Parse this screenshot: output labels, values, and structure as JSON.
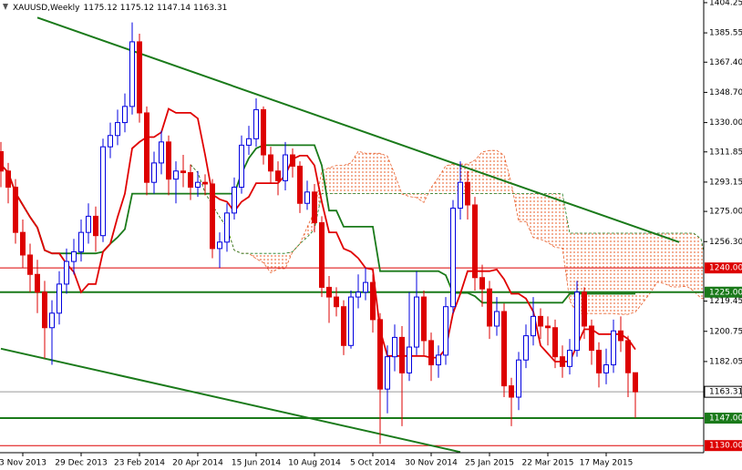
{
  "chart_data": {
    "type": "candlestick",
    "title": "XAUUSD,Weekly",
    "categories": [
      null,
      null,
      null,
      "3 Nov 2013",
      null,
      null,
      null,
      null,
      null,
      null,
      null,
      "29 Dec 2013",
      null,
      null,
      null,
      null,
      null,
      null,
      null,
      "23 Feb 2014",
      null,
      null,
      null,
      null,
      null,
      null,
      null,
      "20 Apr 2014",
      null,
      null,
      null,
      null,
      null,
      null,
      null,
      "15 Jun 2014",
      null,
      null,
      null,
      null,
      null,
      null,
      null,
      "10 Aug 2014",
      null,
      null,
      null,
      null,
      null,
      null,
      null,
      "5 Oct 2014",
      null,
      null,
      null,
      null,
      null,
      null,
      null,
      "30 Nov 2014",
      null,
      null,
      null,
      null,
      null,
      null,
      null,
      "25 Jan 2015",
      null,
      null,
      null,
      null,
      null,
      null,
      null,
      "22 Mar 2015",
      null,
      null,
      null,
      null,
      null,
      null,
      null,
      "17 May 2015",
      null,
      null,
      null,
      null
    ],
    "open": [
      1312,
      1300,
      1290,
      1262,
      1248,
      1236,
      1225,
      1203,
      1212,
      1230,
      1244,
      1250,
      1262,
      1272,
      1260,
      1315,
      1322,
      1330,
      1340,
      1380,
      1336,
      1293,
      1305,
      1318,
      1295,
      1300,
      1299,
      1290,
      1293,
      1292,
      1252,
      1256,
      1274,
      1290,
      1316,
      1320,
      1338,
      1310,
      1300,
      1294,
      1310,
      1303,
      1280,
      1287,
      1268,
      1228,
      1222,
      1216,
      1192,
      1222,
      1225,
      1231,
      1208,
      1165,
      1185,
      1197,
      1175,
      1191,
      1222,
      1195,
      1180,
      1186,
      1216,
      1277,
      1293,
      1279,
      1234,
      1227,
      1204,
      1213,
      1167,
      1160,
      1183,
      1198,
      1210,
      1204,
      1203,
      1185,
      1179,
      1189,
      1225,
      1204,
      1189,
      1175,
      1180,
      1201,
      1195,
      1175.12
    ],
    "high": [
      1318,
      1305,
      1295,
      1270,
      1255,
      1245,
      1232,
      1220,
      1238,
      1252,
      1258,
      1270,
      1280,
      1278,
      1320,
      1330,
      1338,
      1348,
      1392,
      1385,
      1340,
      1312,
      1325,
      1322,
      1306,
      1310,
      1304,
      1300,
      1298,
      1295,
      1262,
      1280,
      1296,
      1322,
      1328,
      1345,
      1340,
      1315,
      1306,
      1318,
      1314,
      1306,
      1294,
      1292,
      1272,
      1235,
      1228,
      1220,
      1226,
      1236,
      1240,
      1236,
      1212,
      1192,
      1205,
      1204,
      1225,
      1238,
      1226,
      1200,
      1192,
      1222,
      1282,
      1306,
      1300,
      1284,
      1242,
      1232,
      1222,
      1218,
      1172,
      1188,
      1205,
      1222,
      1215,
      1210,
      1208,
      1192,
      1196,
      1232,
      1228,
      1208,
      1194,
      1190,
      1208,
      1210,
      1198,
      1175.12
    ],
    "low": [
      1290,
      1280,
      1255,
      1240,
      1225,
      1212,
      1184,
      1180,
      1205,
      1224,
      1236,
      1244,
      1255,
      1250,
      1256,
      1308,
      1316,
      1324,
      1335,
      1330,
      1285,
      1286,
      1298,
      1285,
      1280,
      1290,
      1282,
      1284,
      1285,
      1246,
      1240,
      1250,
      1270,
      1286,
      1310,
      1315,
      1304,
      1292,
      1285,
      1288,
      1296,
      1274,
      1276,
      1262,
      1222,
      1206,
      1210,
      1186,
      1190,
      1215,
      1220,
      1200,
      1131,
      1150,
      1176,
      1142,
      1170,
      1186,
      1186,
      1170,
      1172,
      1180,
      1212,
      1270,
      1270,
      1226,
      1216,
      1196,
      1198,
      1160,
      1142,
      1152,
      1178,
      1192,
      1196,
      1192,
      1178,
      1172,
      1174,
      1185,
      1196,
      1180,
      1166,
      1168,
      1175,
      1188,
      1160,
      1147.14
    ],
    "close": [
      1300,
      1290,
      1262,
      1248,
      1236,
      1225,
      1203,
      1212,
      1230,
      1244,
      1250,
      1262,
      1272,
      1260,
      1315,
      1322,
      1330,
      1340,
      1380,
      1336,
      1293,
      1305,
      1318,
      1295,
      1300,
      1299,
      1290,
      1293,
      1292,
      1252,
      1256,
      1274,
      1290,
      1316,
      1320,
      1338,
      1310,
      1300,
      1294,
      1310,
      1303,
      1280,
      1287,
      1268,
      1228,
      1222,
      1216,
      1192,
      1222,
      1225,
      1231,
      1208,
      1165,
      1185,
      1197,
      1175,
      1191,
      1222,
      1195,
      1180,
      1186,
      1216,
      1277,
      1293,
      1279,
      1234,
      1227,
      1204,
      1213,
      1167,
      1160,
      1183,
      1198,
      1210,
      1204,
      1203,
      1185,
      1179,
      1189,
      1225,
      1204,
      1189,
      1175,
      1180,
      1201,
      1195,
      1175.12,
      1163.31
    ],
    "up_color": "#0000e0",
    "down_color": "#dd0000",
    "ylim": [
      1125.6,
      1405.9
    ],
    "yticks": [
      1404.25,
      1385.55,
      {
        "value": 1367.4,
        "label": "1367.40"
      },
      {
        "value": 1348.7,
        "label": "1348.70"
      },
      {
        "value": 1330,
        "label": "1330.00"
      },
      1311.85,
      1293.15,
      {
        "value": 1275,
        "label": "1275.00"
      },
      {
        "value": 1256.3,
        "label": "1256.30"
      },
      1219.45,
      1200.75,
      1182.05
    ],
    "levels": [
      {
        "value": 1240,
        "label": "1240.00",
        "color": "#dd0000"
      },
      {
        "value": 1225,
        "label": "1225.00",
        "color": "#1a7a1a"
      },
      {
        "value": 1163.31,
        "label": "1163.31",
        "color": "#9a9a9a"
      },
      {
        "value": 1147,
        "label": "1147.00",
        "color": "#1a7a1a"
      },
      {
        "value": 1130,
        "label": "1130.00",
        "color": "#dd0000"
      }
    ],
    "trendlines": [
      {
        "x": [
          5,
          93
        ],
        "values": [
          1395,
          1256
        ],
        "color": "#1a7a1a"
      },
      {
        "x": [
          0,
          63
        ],
        "values": [
          1190,
          1126
        ],
        "color": "#1a7a1a"
      }
    ],
    "tenkan_color": "#e00000",
    "kijun_color": "#1a7a1a",
    "cloud_color": "#e8602c"
  }
}
